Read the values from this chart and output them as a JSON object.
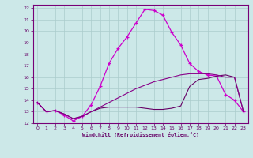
{
  "xlabel": "Windchill (Refroidissement éolien,°C)",
  "background_color": "#cce8e8",
  "grid_color": "#aacccc",
  "line_color1": "#cc00cc",
  "line_color2": "#880088",
  "line_color3": "#660066",
  "xlim": [
    -0.5,
    23.5
  ],
  "ylim": [
    12,
    22.3
  ],
  "xticks": [
    0,
    1,
    2,
    3,
    4,
    5,
    6,
    7,
    8,
    9,
    10,
    11,
    12,
    13,
    14,
    15,
    16,
    17,
    18,
    19,
    20,
    21,
    22,
    23
  ],
  "yticks": [
    12,
    13,
    14,
    15,
    16,
    17,
    18,
    19,
    20,
    21,
    22
  ],
  "series1_x": [
    0,
    1,
    2,
    3,
    4,
    5,
    6,
    7,
    8,
    9,
    10,
    11,
    12,
    13,
    14,
    15,
    16,
    17,
    18,
    19,
    20,
    21,
    22,
    23
  ],
  "series1_y": [
    13.8,
    13.0,
    13.1,
    12.7,
    12.2,
    12.6,
    13.6,
    15.2,
    17.2,
    18.5,
    19.5,
    20.7,
    21.9,
    21.8,
    21.4,
    19.9,
    18.8,
    17.2,
    16.5,
    16.2,
    16.1,
    14.5,
    14.0,
    13.0
  ],
  "series2_x": [
    0,
    1,
    2,
    3,
    4,
    5,
    6,
    7,
    8,
    9,
    10,
    11,
    12,
    13,
    14,
    15,
    16,
    17,
    18,
    19,
    20,
    21,
    22,
    23
  ],
  "series2_y": [
    13.8,
    13.0,
    13.1,
    12.8,
    12.4,
    12.6,
    13.0,
    13.3,
    13.4,
    13.4,
    13.4,
    13.4,
    13.3,
    13.2,
    13.2,
    13.3,
    13.5,
    15.2,
    15.8,
    15.9,
    16.1,
    16.2,
    16.0,
    13.0
  ],
  "series3_x": [
    0,
    1,
    2,
    3,
    4,
    5,
    6,
    7,
    8,
    9,
    10,
    11,
    12,
    13,
    14,
    15,
    16,
    17,
    18,
    19,
    20,
    21,
    22,
    23
  ],
  "series3_y": [
    13.8,
    13.0,
    13.1,
    12.8,
    12.4,
    12.6,
    13.0,
    13.4,
    13.8,
    14.2,
    14.6,
    15.0,
    15.3,
    15.6,
    15.8,
    16.0,
    16.2,
    16.3,
    16.3,
    16.3,
    16.2,
    16.0,
    16.0,
    13.0
  ]
}
